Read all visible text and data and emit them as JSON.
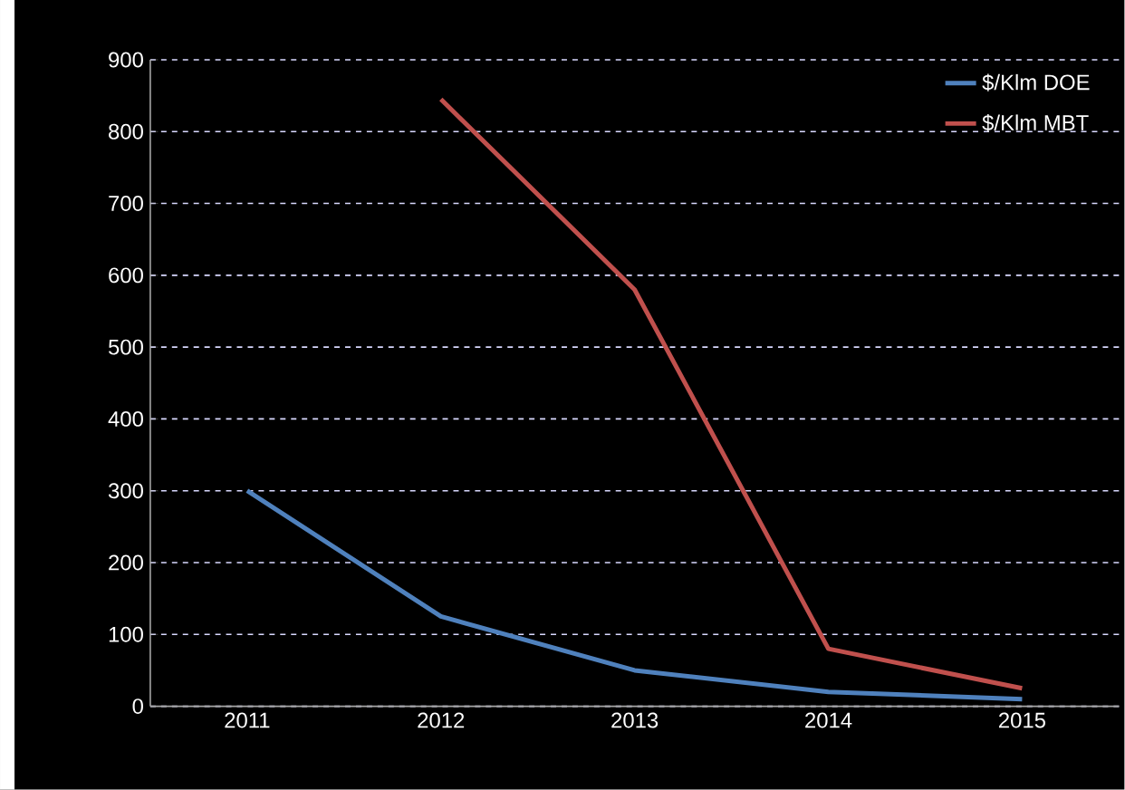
{
  "chart_data": {
    "type": "line",
    "categories": [
      "2011",
      "2012",
      "2013",
      "2014",
      "2015"
    ],
    "series": [
      {
        "name": "$/Klm DOE",
        "color": "#4f81bd",
        "values": [
          300,
          125,
          50,
          20,
          10
        ]
      },
      {
        "name": "$/Klm MBT",
        "color": "#c0504d",
        "values": [
          null,
          845,
          580,
          80,
          25
        ]
      }
    ],
    "ylim": [
      0,
      900
    ],
    "yticks": [
      0,
      100,
      200,
      300,
      400,
      500,
      600,
      700,
      800,
      900
    ],
    "grid": "y",
    "legend": "top right",
    "marker": "none",
    "line_style": "solid"
  }
}
